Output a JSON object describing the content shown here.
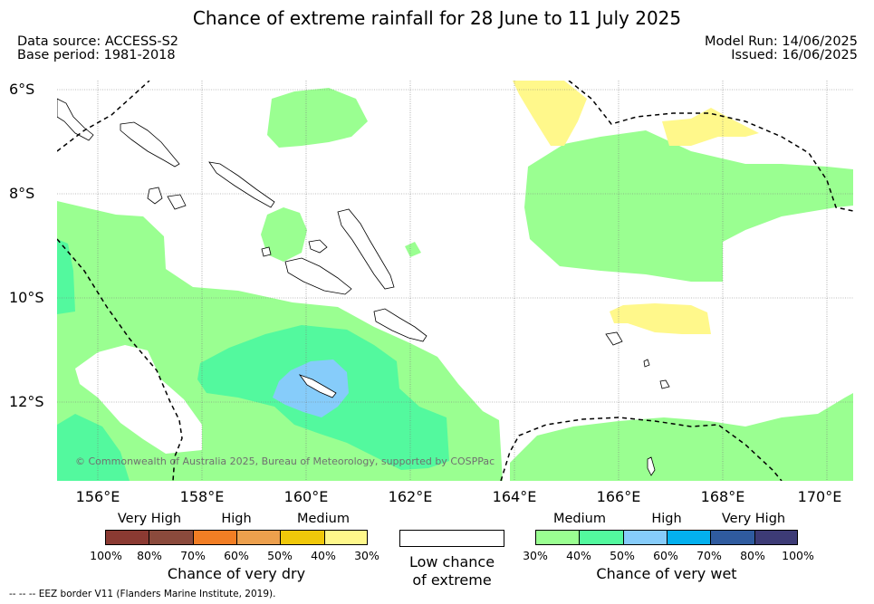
{
  "title": "Chance of extreme rainfall for 28 June to 11 July 2025",
  "data_source": "Data source: ACCESS-S2",
  "base_period": "Base period: 1981-2018",
  "model_run": "Model Run: 14/06/2025",
  "issued": "Issued: 16/06/2025",
  "copyright": "© Commonwealth of Australia 2025, Bureau of Meteorology, supported by COSPPac",
  "footnote": "--  --  -- EEZ border V11 (Flanders Marine Institute, 2019).",
  "latitude_labels": [
    "6°S",
    "8°S",
    "10°S",
    "12°S"
  ],
  "longitude_labels": [
    "156°E",
    "158°E",
    "160°E",
    "162°E",
    "164°E",
    "166°E",
    "168°E",
    "170°E"
  ],
  "legend": {
    "dry": {
      "categories": [
        "Very High",
        "High",
        "Medium"
      ],
      "ticks": [
        "100%",
        "80%",
        "70%",
        "60%",
        "50%",
        "40%",
        "30%"
      ],
      "title": "Chance of very dry",
      "colors": [
        "#8b3a32",
        "#8b4a3c",
        "#f27e24",
        "#eda04d",
        "#f0c80a",
        "#fff88b"
      ]
    },
    "low": {
      "title_line1": "Low chance",
      "title_line2": "of extreme"
    },
    "wet": {
      "categories": [
        "Medium",
        "High",
        "Very High"
      ],
      "ticks": [
        "30%",
        "40%",
        "50%",
        "60%",
        "70%",
        "80%",
        "100%"
      ],
      "title": "Chance of very wet",
      "colors": [
        "#9aff91",
        "#53f99e",
        "#86ccfa",
        "#03b0ee",
        "#2f5b9f",
        "#3d3b76"
      ]
    }
  },
  "colors": {
    "wet_medium_30_40": "#9aff91",
    "wet_medium_40_50": "#53f99e",
    "wet_high_50_60": "#86ccfa",
    "dry_medium_30_40": "#fff88b"
  }
}
